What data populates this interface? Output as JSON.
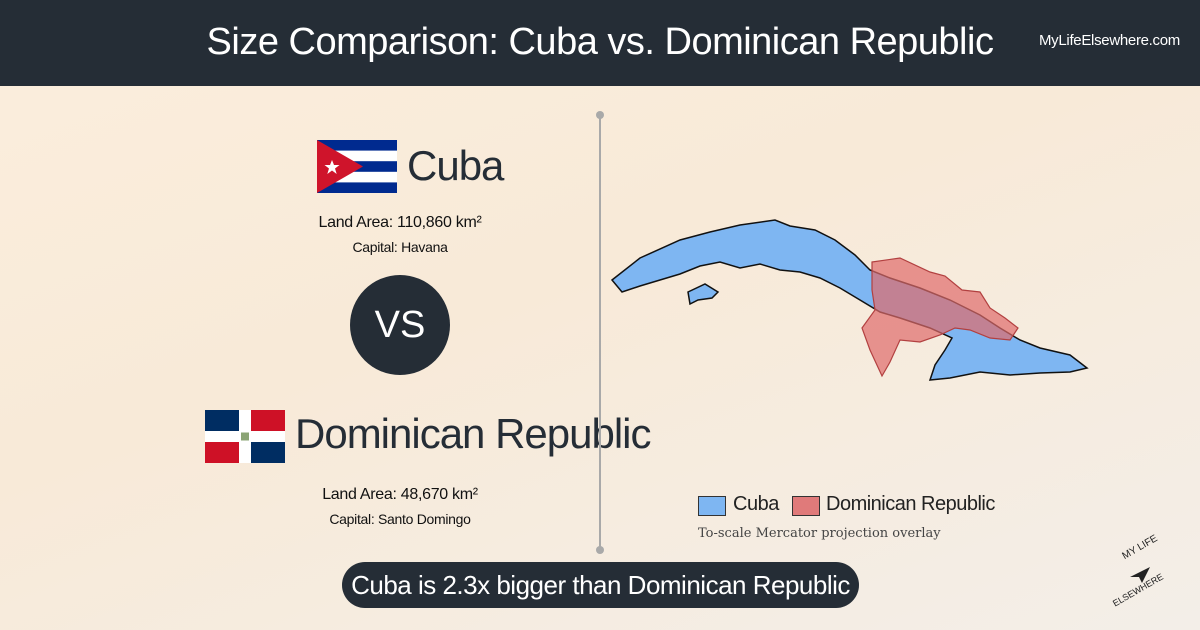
{
  "header": {
    "title": "Size Comparison: Cuba vs. Dominican Republic",
    "site": "MyLifeElsewhere.com"
  },
  "country_1": {
    "name": "Cuba",
    "land_area": "Land Area: 110,860 km²",
    "capital": "Capital: Havana"
  },
  "vs": "VS",
  "country_2": {
    "name": "Dominican Republic",
    "land_area": "Land Area: 48,670 km²",
    "capital": "Capital: Santo Domingo"
  },
  "legend": {
    "items": [
      "Cuba",
      "Dominican Republic"
    ],
    "note": "To-scale Mercator projection overlay"
  },
  "banner": "Cuba is 2.3x bigger than Dominican Republic",
  "logo": {
    "top": "MY LIFE",
    "bottom": "ELSEWHERE"
  }
}
